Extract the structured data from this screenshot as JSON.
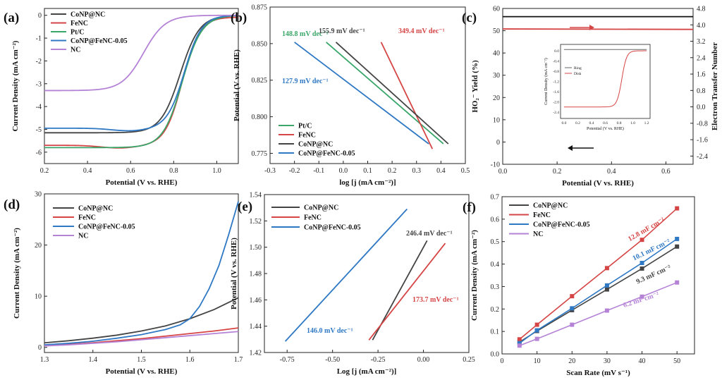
{
  "colors": {
    "CoNP@NC": "#444444",
    "FeNC": "#d64545",
    "Pt/C": "#3aa66a",
    "CoNP@FeNC-0.05": "#2f78c4",
    "NC": "#b583d6",
    "ring": "#666666",
    "disk": "#d64545",
    "hn": "#d64545",
    "etn": "#111111"
  },
  "chart_data": [
    {
      "panel": "(a)",
      "type": "line",
      "xlabel": "Potential (V vs. RHE)",
      "ylabel": "Current Density (mA cm⁻²)",
      "xlim": [
        0.2,
        1.1
      ],
      "ylim": [
        -6.5,
        0.3
      ],
      "xticks": [
        "0.2",
        "0.4",
        "0.6",
        "0.8",
        "1.0"
      ],
      "yticks": [
        "0",
        "-1",
        "-2",
        "-3",
        "-4",
        "-5",
        "-6"
      ],
      "legend_loc": "top-left",
      "series": [
        {
          "name": "CoNP@NC",
          "key": "CoNP@NC",
          "halfwave": 0.83,
          "width": 0.045,
          "limit": -5.15,
          "tail": 0.0
        },
        {
          "name": "FeNC",
          "key": "FeNC",
          "halfwave": 0.84,
          "width": 0.04,
          "limit": -5.7,
          "tail": -0.08,
          "dip": 0.55
        },
        {
          "name": "Pt/C",
          "key": "Pt/C",
          "halfwave": 0.84,
          "width": 0.045,
          "limit": -5.8,
          "tail": 0.0
        },
        {
          "name": "CoNP@FeNC-0.05",
          "key": "CoNP@FeNC-0.05",
          "halfwave": 0.85,
          "width": 0.04,
          "limit": -4.95,
          "tail": 0.0,
          "dip": 0.6
        },
        {
          "name": "NC",
          "key": "NC",
          "halfwave": 0.66,
          "width": 0.05,
          "limit": -3.3,
          "tail": 0.0
        }
      ]
    },
    {
      "panel": "(b)",
      "type": "line",
      "xlabel": "log [j (mA cm⁻²)]",
      "ylabel": "Potential (V vs. RHE)",
      "xlim": [
        -0.3,
        0.5
      ],
      "ylim": [
        0.768,
        0.875
      ],
      "xticks": [
        "-0.3",
        "-0.2",
        "-0.1",
        "0.0",
        "0.1",
        "0.2",
        "0.3",
        "0.4",
        "0.5"
      ],
      "yticks": [
        "0.775",
        "0.800",
        "0.825",
        "0.850",
        "0.875"
      ],
      "legend_loc": "bottom-left",
      "series": [
        {
          "name": "Pt/C",
          "key": "Pt/C",
          "x": [
            -0.07,
            0.41
          ],
          "y": [
            0.851,
            0.7815
          ],
          "slope": "148.8 mV dec⁻¹"
        },
        {
          "name": "FeNC",
          "key": "FeNC",
          "x": [
            0.155,
            0.365
          ],
          "y": [
            0.851,
            0.778
          ],
          "slope": "349.4 mV dec⁻¹"
        },
        {
          "name": "CoNP@NC",
          "key": "CoNP@NC",
          "x": [
            -0.03,
            0.43
          ],
          "y": [
            0.851,
            0.7815
          ],
          "slope": "155.9 mV dec⁻¹"
        },
        {
          "name": "CoNP@FeNC-0.05",
          "key": "CoNP@FeNC-0.05",
          "x": [
            -0.2,
            0.35
          ],
          "y": [
            0.851,
            0.7815
          ],
          "slope": "127.9 mV dec⁻¹"
        }
      ]
    },
    {
      "panel": "(c)",
      "type": "line",
      "xlabel": "Potential (V vs. RHE)",
      "ylabel": "HO₂⁻ Yield (%)",
      "y2label": "Electron Transfer Number",
      "xlim": [
        0.0,
        0.7
      ],
      "ylim": [
        -10,
        60
      ],
      "y2lim": [
        -2.8,
        4.8
      ],
      "xticks": [
        "0.0",
        "0.2",
        "0.4",
        "0.6"
      ],
      "yticks": [
        "60",
        "50",
        "40",
        "30",
        "20",
        "10",
        "0",
        "-10"
      ],
      "y2ticks": [
        "4.8",
        "4.0",
        "3.2",
        "2.4",
        "1.6",
        "0.8",
        "0.0",
        "-0.8",
        "-1.6",
        "-2.4"
      ],
      "series": [
        {
          "name": "HO₂⁻ Yield",
          "key": "hn",
          "x": [
            0.0,
            0.7
          ],
          "y": [
            50.8,
            50.6
          ]
        },
        {
          "name": "Electron Transfer Number",
          "key": "etn",
          "x": [
            0.0,
            0.7
          ],
          "y": [
            4.4,
            4.4
          ]
        }
      ],
      "inset": {
        "xlabel": "Potential (V vs. RHE)",
        "ylabel": "Current Density (mA cm⁻²)",
        "xlim": [
          -0.05,
          1.25
        ],
        "ylim": [
          -2.65,
          0.25
        ],
        "xticks": [
          "0.0",
          "0.2",
          "0.4",
          "0.6",
          "0.8",
          "1.0",
          "1.2"
        ],
        "yticks": [
          "0.0",
          "-0.4",
          "-0.8",
          "-1.2",
          "-1.6",
          "-2.0",
          "-2.4"
        ],
        "legend": [
          "Ring",
          "Disk"
        ],
        "ring_value": 0.05,
        "disk_limit": -2.2,
        "disk_halfwave": 0.84
      }
    },
    {
      "panel": "(d)",
      "type": "line",
      "xlabel": "Potential (V vs. RHE)",
      "ylabel": "Current Density (mA cm⁻²)",
      "xlim": [
        1.3,
        1.7
      ],
      "ylim": [
        -1,
        30
      ],
      "xticks": [
        "1.3",
        "1.4",
        "1.5",
        "1.6",
        "1.7"
      ],
      "yticks": [
        "0",
        "10",
        "20",
        "30"
      ],
      "legend_loc": "top-left",
      "series": [
        {
          "name": "CoNP@NC",
          "key": "CoNP@NC",
          "x": [
            1.3,
            1.35,
            1.4,
            1.45,
            1.5,
            1.55,
            1.6,
            1.65,
            1.7
          ],
          "y": [
            0.9,
            1.3,
            1.8,
            2.4,
            3.2,
            4.2,
            5.6,
            7.4,
            9.7
          ]
        },
        {
          "name": "FeNC",
          "key": "FeNC",
          "x": [
            1.3,
            1.35,
            1.4,
            1.45,
            1.5,
            1.55,
            1.6,
            1.65,
            1.7
          ],
          "y": [
            0.3,
            0.6,
            0.9,
            1.3,
            1.7,
            2.2,
            2.7,
            3.2,
            3.8
          ]
        },
        {
          "name": "CoNP@FeNC-0.05",
          "key": "CoNP@FeNC-0.05",
          "x": [
            1.3,
            1.35,
            1.4,
            1.45,
            1.5,
            1.55,
            1.58,
            1.6,
            1.62,
            1.64,
            1.66,
            1.68,
            1.7
          ],
          "y": [
            0.5,
            0.8,
            1.2,
            1.8,
            2.5,
            3.5,
            4.4,
            5.6,
            8.0,
            11.5,
            16.0,
            22.0,
            28.5
          ]
        },
        {
          "name": "NC",
          "key": "NC",
          "x": [
            1.3,
            1.35,
            1.4,
            1.45,
            1.5,
            1.55,
            1.6,
            1.65,
            1.7
          ],
          "y": [
            0.3,
            0.5,
            0.8,
            1.1,
            1.5,
            1.9,
            2.3,
            2.7,
            3.1
          ]
        }
      ]
    },
    {
      "panel": "(e)",
      "type": "line",
      "xlabel": "Log [j (mA cm⁻²)]",
      "ylabel": "Potential (V vs. RHE)",
      "xlim": [
        -0.875,
        0.25
      ],
      "ylim": [
        1.42,
        1.54
      ],
      "xticks": [
        "-0.75",
        "-0.50",
        "-0.25",
        "0.00",
        "0.25"
      ],
      "yticks": [
        "1.42",
        "1.44",
        "1.46",
        "1.48",
        "1.50",
        "1.52",
        "1.54"
      ],
      "legend_loc": "top-left",
      "series": [
        {
          "name": "CoNP@NC",
          "key": "CoNP@NC",
          "x": [
            -0.28,
            0.02
          ],
          "y": [
            1.4295,
            1.505
          ],
          "slope": "246.4 mV dec⁻¹"
        },
        {
          "name": "FeNC",
          "key": "FeNC",
          "x": [
            -0.3,
            0.12
          ],
          "y": [
            1.4295,
            1.503
          ],
          "slope": "173.7 mV dec⁻¹"
        },
        {
          "name": "CoNP@FeNC-0.05",
          "key": "CoNP@FeNC-0.05",
          "x": [
            -0.76,
            -0.09
          ],
          "y": [
            1.4285,
            1.529
          ],
          "slope": "146.0 mV dec⁻¹"
        }
      ]
    },
    {
      "panel": "(f)",
      "type": "scatter",
      "xlabel": "Scan Rate (mV s⁻¹)",
      "ylabel": "Current Density (mA cm⁻²)",
      "xlim": [
        0,
        55
      ],
      "ylim": [
        0.0,
        0.7
      ],
      "xticks": [
        "0",
        "10",
        "20",
        "30",
        "40",
        "50"
      ],
      "yticks": [
        "0.0",
        "0.1",
        "0.2",
        "0.3",
        "0.4",
        "0.5",
        "0.6",
        "0.7"
      ],
      "legend_loc": "top-left",
      "series": [
        {
          "name": "CoNP@NC",
          "key": "CoNP@NC",
          "x": [
            5,
            10,
            20,
            30,
            40,
            50
          ],
          "y": [
            0.053,
            0.102,
            0.195,
            0.287,
            0.38,
            0.478
          ],
          "slope": "9.3 mF cm⁻²"
        },
        {
          "name": "FeNC",
          "key": "FeNC",
          "x": [
            5,
            10,
            20,
            30,
            40,
            50
          ],
          "y": [
            0.065,
            0.13,
            0.257,
            0.382,
            0.508,
            0.648
          ],
          "slope": "12.8 mF cm⁻²"
        },
        {
          "name": "CoNP@FeNC-0.05",
          "key": "CoNP@FeNC-0.05",
          "x": [
            5,
            10,
            20,
            30,
            40,
            50
          ],
          "y": [
            0.048,
            0.105,
            0.203,
            0.305,
            0.405,
            0.512
          ],
          "slope": "10.1 mF cm⁻²"
        },
        {
          "name": "NC",
          "key": "NC",
          "x": [
            5,
            10,
            20,
            30,
            40,
            50
          ],
          "y": [
            0.037,
            0.067,
            0.13,
            0.193,
            0.255,
            0.318
          ],
          "slope": "6.2 mF cm⁻²"
        }
      ]
    }
  ]
}
